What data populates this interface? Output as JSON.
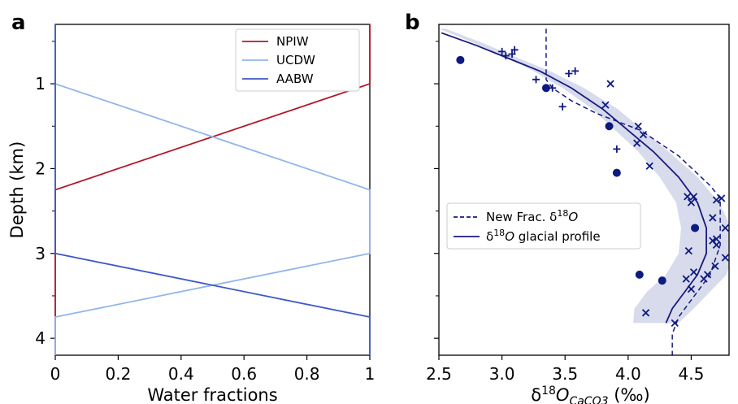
{
  "chart_data": [
    {
      "type": "line",
      "panel_label": "a",
      "xlabel": "Water fractions",
      "ylabel": "Depth (km)",
      "xlim": [
        0,
        1
      ],
      "ylim": [
        0.3,
        4.2
      ],
      "y_inverted": true,
      "x_ticks": [
        0,
        0.2,
        0.4,
        0.6,
        0.8,
        1
      ],
      "x_tick_labels": [
        "0",
        "0.2",
        "0.4",
        "0.6",
        "0.8",
        "1"
      ],
      "y_ticks": [
        1,
        2,
        3,
        4
      ],
      "y_tick_labels": [
        "1",
        "2",
        "3",
        "4"
      ],
      "legend_position": "top-right",
      "series": [
        {
          "name": "NPIW",
          "color": "#b2182b",
          "x": [
            1,
            1,
            0,
            0
          ],
          "y": [
            0.3,
            1.0,
            2.25,
            4.2
          ]
        },
        {
          "name": "UCDW",
          "color": "#92b5ea",
          "x": [
            0,
            0,
            1,
            1,
            0,
            0
          ],
          "y": [
            0.3,
            1.0,
            2.25,
            3.0,
            3.75,
            4.2
          ]
        },
        {
          "name": "AABW",
          "color": "#3e59c6",
          "x": [
            0,
            0,
            1,
            1
          ],
          "y": [
            0.3,
            3.0,
            3.75,
            4.2
          ]
        }
      ]
    },
    {
      "type": "scatter",
      "panel_label": "b",
      "xlabel": "δ18OCaCO3 (‰)",
      "xlabel_parts": {
        "delta": "δ",
        "sup": "18",
        "o": "O",
        "sub": "CaCO3",
        "unit": " (‰)"
      },
      "xlim": [
        2.5,
        4.8
      ],
      "ylim": [
        0.3,
        4.2
      ],
      "y_inverted": true,
      "x_ticks": [
        2.5,
        3.0,
        3.5,
        4.0,
        4.5
      ],
      "x_tick_labels": [
        "2.5",
        "3.0",
        "3.5",
        "4.0",
        "4.5"
      ],
      "y_ticks": [
        1,
        2,
        3,
        4
      ],
      "legend_position": "center-left",
      "legend": [
        {
          "label": "New Frac. δ18O",
          "parts": {
            "pre": "New Frac. δ",
            "sup": "18",
            "o": "O"
          },
          "style": "dashed"
        },
        {
          "label": "δ18O glacial profile",
          "parts": {
            "pre": "δ",
            "sup": "18",
            "o": "O",
            "post": " glacial profile"
          },
          "style": "solid"
        }
      ],
      "series": [
        {
          "name": "New Frac. δ18O",
          "style": "dashed",
          "color": "#1a1a80",
          "x": [
            3.35,
            3.35,
            3.35,
            3.4,
            3.55,
            3.75,
            4.1,
            4.4,
            4.65,
            4.73,
            4.73,
            4.73,
            4.65,
            4.5,
            4.4,
            4.35,
            4.35
          ],
          "y": [
            0.35,
            0.75,
            0.95,
            1.05,
            1.2,
            1.35,
            1.55,
            1.85,
            2.2,
            2.35,
            2.6,
            2.9,
            3.25,
            3.55,
            3.75,
            3.95,
            4.2
          ]
        },
        {
          "name": "δ18O glacial profile",
          "style": "solid",
          "color": "#1a1a80",
          "x": [
            2.52,
            2.8,
            3.05,
            3.3,
            3.55,
            3.8,
            4.0,
            4.2,
            4.4,
            4.55,
            4.62,
            4.62,
            4.55,
            4.45,
            4.35,
            4.3
          ],
          "y": [
            0.4,
            0.55,
            0.7,
            0.85,
            1.05,
            1.3,
            1.55,
            1.8,
            2.1,
            2.4,
            2.7,
            3.0,
            3.25,
            3.45,
            3.65,
            3.82
          ]
        },
        {
          "name": "band",
          "role": "uncertainty",
          "color": "#c9cfe6",
          "x_low": [
            2.5,
            2.78,
            3.02,
            3.25,
            3.48,
            3.72,
            3.9,
            4.08,
            4.25,
            4.38,
            4.42,
            4.4,
            4.3,
            4.15,
            4.05,
            4.04
          ],
          "x_high": [
            2.55,
            2.85,
            3.1,
            3.38,
            3.65,
            3.92,
            4.12,
            4.32,
            4.55,
            4.72,
            4.82,
            4.84,
            4.78,
            4.65,
            4.52,
            4.4
          ],
          "y": [
            0.35,
            0.52,
            0.68,
            0.85,
            1.05,
            1.3,
            1.55,
            1.8,
            2.1,
            2.4,
            2.7,
            3.0,
            3.25,
            3.45,
            3.65,
            3.82
          ]
        },
        {
          "name": "circles",
          "marker": "circle",
          "color": "#0d1a80",
          "points": [
            [
              2.67,
              0.72
            ],
            [
              3.35,
              1.05
            ],
            [
              3.85,
              1.5
            ],
            [
              3.91,
              2.05
            ],
            [
              4.53,
              2.7
            ],
            [
              4.09,
              3.25
            ],
            [
              4.27,
              3.32
            ]
          ]
        },
        {
          "name": "x-markers",
          "marker": "x",
          "color": "#0d1a80",
          "points": [
            [
              3.86,
              1.0
            ],
            [
              3.82,
              1.25
            ],
            [
              4.08,
              1.5
            ],
            [
              4.12,
              1.6
            ],
            [
              4.07,
              1.7
            ],
            [
              4.17,
              1.97
            ],
            [
              4.47,
              2.33
            ],
            [
              4.52,
              2.33
            ],
            [
              4.5,
              2.4
            ],
            [
              4.7,
              2.37
            ],
            [
              4.74,
              2.35
            ],
            [
              4.67,
              2.58
            ],
            [
              4.77,
              2.7
            ],
            [
              4.7,
              2.83
            ],
            [
              4.67,
              2.85
            ],
            [
              4.7,
              2.9
            ],
            [
              4.48,
              2.97
            ],
            [
              4.77,
              3.05
            ],
            [
              4.69,
              3.15
            ],
            [
              4.52,
              3.22
            ],
            [
              4.63,
              3.25
            ],
            [
              4.46,
              3.3
            ],
            [
              4.6,
              3.3
            ],
            [
              4.5,
              3.42
            ],
            [
              4.14,
              3.7
            ],
            [
              4.37,
              3.82
            ]
          ]
        },
        {
          "name": "plus-markers",
          "marker": "plus",
          "color": "#0d1a80",
          "points": [
            [
              3.0,
              0.62
            ],
            [
              3.03,
              0.67
            ],
            [
              3.08,
              0.65
            ],
            [
              3.1,
              0.6
            ],
            [
              3.27,
              0.95
            ],
            [
              3.4,
              1.05
            ],
            [
              3.48,
              1.27
            ],
            [
              3.53,
              0.88
            ],
            [
              3.58,
              0.85
            ],
            [
              3.91,
              1.77
            ]
          ]
        }
      ]
    }
  ]
}
